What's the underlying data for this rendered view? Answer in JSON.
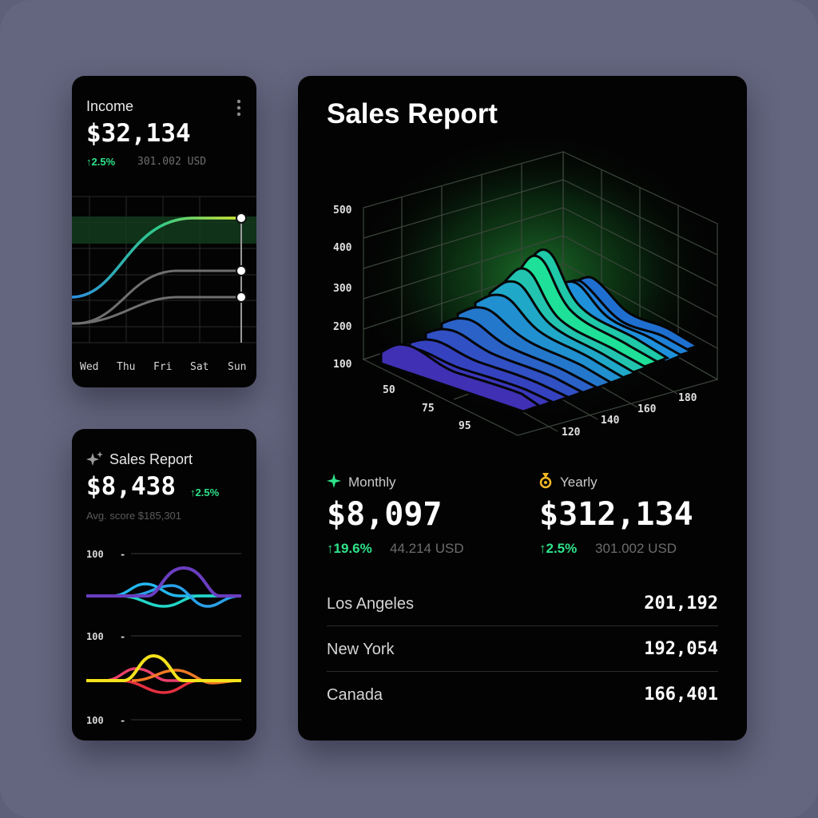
{
  "income": {
    "title": "Income",
    "value": "$32,134",
    "delta": "↑2.5%",
    "sub": "301.002 USD",
    "days": [
      "Wed",
      "Thu",
      "Fri",
      "Sat",
      "Sun"
    ]
  },
  "sales_small": {
    "title": "Sales Report",
    "value": "$8,438",
    "delta": "↑2.5%",
    "avg": "Avg. score $185,301",
    "tick_labels": [
      "100",
      "100",
      "100"
    ]
  },
  "sales_big": {
    "title": "Sales Report",
    "y_ticks": [
      "500",
      "400",
      "300",
      "200",
      "100"
    ],
    "x_left_ticks": [
      "50",
      "75",
      "95"
    ],
    "x_right_ticks": [
      "120",
      "140",
      "160",
      "180"
    ],
    "monthly": {
      "label": "Monthly",
      "value": "$8,097",
      "delta": "↑19.6%",
      "sub": "44.214 USD"
    },
    "yearly": {
      "label": "Yearly",
      "value": "$312,134",
      "delta": "↑2.5%",
      "sub": "301.002 USD"
    },
    "cities": [
      {
        "name": "Los Angeles",
        "value": "201,192"
      },
      {
        "name": "New York",
        "value": "192,054"
      },
      {
        "name": "Canada",
        "value": "166,401"
      }
    ]
  },
  "colors": {
    "accent_green": "#2fe38a",
    "card_bg": "#030303",
    "page_bg": "#64667f"
  }
}
